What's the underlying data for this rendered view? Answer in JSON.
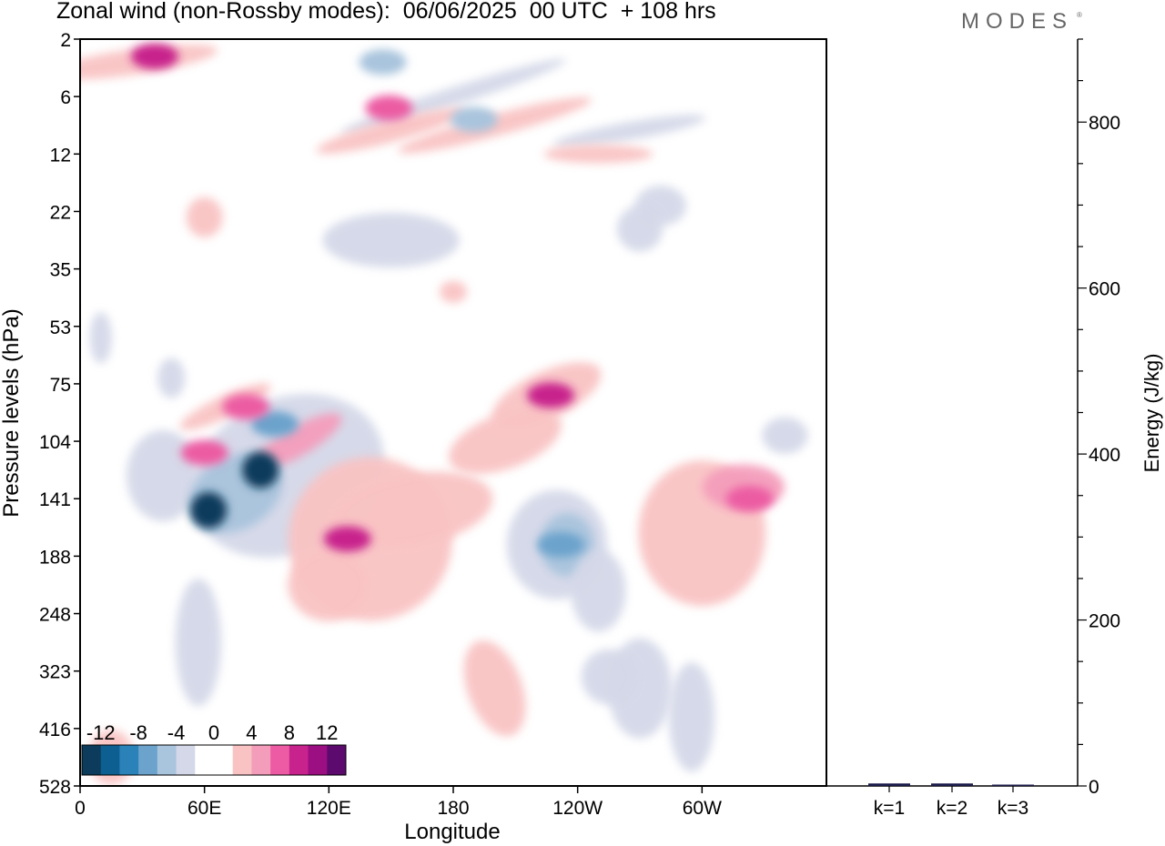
{
  "header": {
    "title": "Zonal wind (non-Rossby modes):  06/06/2025  00 UTC  + 108 hrs",
    "brand": "MODES",
    "brand_mark": "®"
  },
  "chart_data": [
    {
      "type": "heatmap",
      "title": "Zonal wind (non-Rossby modes):  06/06/2025  00 UTC  + 108 hrs",
      "xlabel": "Longitude",
      "ylabel": "Pressure levels (hPa)",
      "x_ticks": [
        "0",
        "60E",
        "120E",
        "180",
        "120W",
        "60W"
      ],
      "x_tick_values": [
        0,
        60,
        120,
        180,
        240,
        300
      ],
      "xlim": [
        0,
        360
      ],
      "y_ticks": [
        "2",
        "6",
        "12",
        "22",
        "35",
        "53",
        "75",
        "104",
        "141",
        "188",
        "248",
        "323",
        "416",
        "528"
      ],
      "colorbar": {
        "labels": [
          "-12",
          "-8",
          "-4",
          "0",
          "4",
          "8",
          "12"
        ],
        "levels": [
          -14,
          -12,
          -10,
          -8,
          -6,
          -4,
          -2,
          0,
          2,
          4,
          6,
          8,
          10,
          12,
          14
        ],
        "colors": [
          "#0c3b5c",
          "#0d5f91",
          "#2a82b9",
          "#6ca3cc",
          "#a9c4dd",
          "#d4d8e8",
          "#ffffff",
          "#ffffff",
          "#f9c3c3",
          "#f49dbb",
          "#ec5ba3",
          "#c8228c",
          "#9b0f82",
          "#5c0a6e"
        ]
      },
      "features": [
        {
          "lon": 62,
          "level_index": 8.2,
          "value": -13
        },
        {
          "lon": 87,
          "level_index": 7.5,
          "value": -13
        },
        {
          "lon": 94,
          "level_index": 6.7,
          "value": -7
        },
        {
          "lon": 36,
          "level_index": 0.3,
          "value": 8
        },
        {
          "lon": 60,
          "level_index": 7.2,
          "value": 6
        },
        {
          "lon": 80,
          "level_index": 6.4,
          "value": 6
        },
        {
          "lon": 129,
          "level_index": 8.7,
          "value": 9
        },
        {
          "lon": 227,
          "level_index": 6.2,
          "value": 9
        },
        {
          "lon": 323,
          "level_index": 8.0,
          "value": 6
        },
        {
          "lon": 232,
          "level_index": 8.8,
          "value": -8
        },
        {
          "lon": 146,
          "level_index": 0.4,
          "value": -6
        },
        {
          "lon": 190,
          "level_index": 1.4,
          "value": -5
        },
        {
          "lon": 149,
          "level_index": 1.2,
          "value": 7
        }
      ]
    },
    {
      "type": "bar",
      "ylabel": "Energy (J/kg)",
      "categories": [
        "k=1",
        "k=2",
        "k=3"
      ],
      "values": [
        3,
        3,
        1
      ],
      "ylim": [
        0,
        900
      ],
      "y_ticks": [
        "0",
        "200",
        "400",
        "600",
        "800"
      ]
    }
  ]
}
